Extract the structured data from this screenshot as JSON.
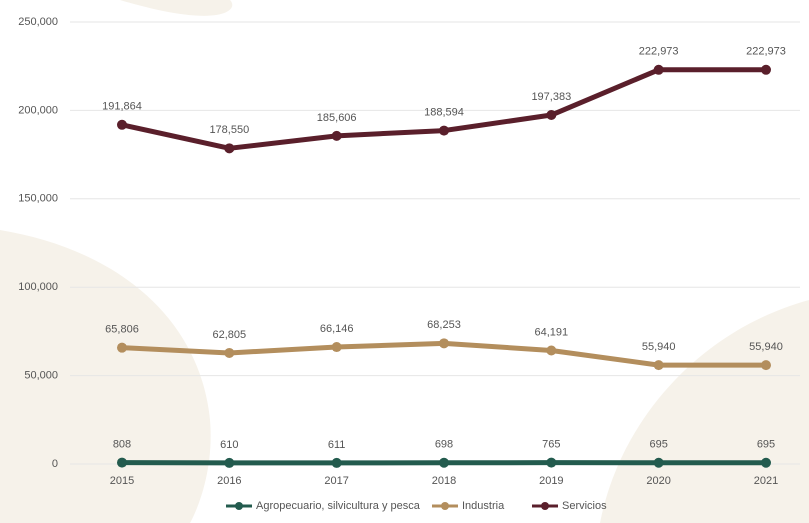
{
  "chart_data": {
    "type": "line",
    "categories": [
      "2015",
      "2016",
      "2017",
      "2018",
      "2019",
      "2020",
      "2021"
    ],
    "series": [
      {
        "name": "Agropecuario, silvicultura y pesca",
        "color": "#235b4e",
        "values": [
          808,
          610,
          611,
          698,
          765,
          695,
          695
        ],
        "value_labels": [
          "808",
          "610",
          "611",
          "698",
          "765",
          "695",
          "695"
        ]
      },
      {
        "name": "Industria",
        "color": "#b38e5d",
        "values": [
          65806,
          62805,
          66146,
          68253,
          64191,
          55940,
          55940
        ],
        "value_labels": [
          "65,806",
          "62,805",
          "66,146",
          "68,253",
          "64,191",
          "55,940",
          "55,940"
        ]
      },
      {
        "name": "Servicios",
        "color": "#5a1f2b",
        "values": [
          191864,
          178550,
          185606,
          188594,
          197383,
          222973,
          222973
        ],
        "value_labels": [
          "191,864",
          "178,550",
          "185,606",
          "188,594",
          "197,383",
          "222,973",
          "222,973"
        ]
      }
    ],
    "ylim": [
      0,
      250000
    ],
    "yticks": [
      {
        "value": 0,
        "label": "0"
      },
      {
        "value": 50000,
        "label": "50,000"
      },
      {
        "value": 100000,
        "label": "100,000"
      },
      {
        "value": 150000,
        "label": "150,000"
      },
      {
        "value": 200000,
        "label": "200,000"
      },
      {
        "value": 250000,
        "label": "250,000"
      }
    ],
    "grid": true,
    "legend": "bottom"
  }
}
